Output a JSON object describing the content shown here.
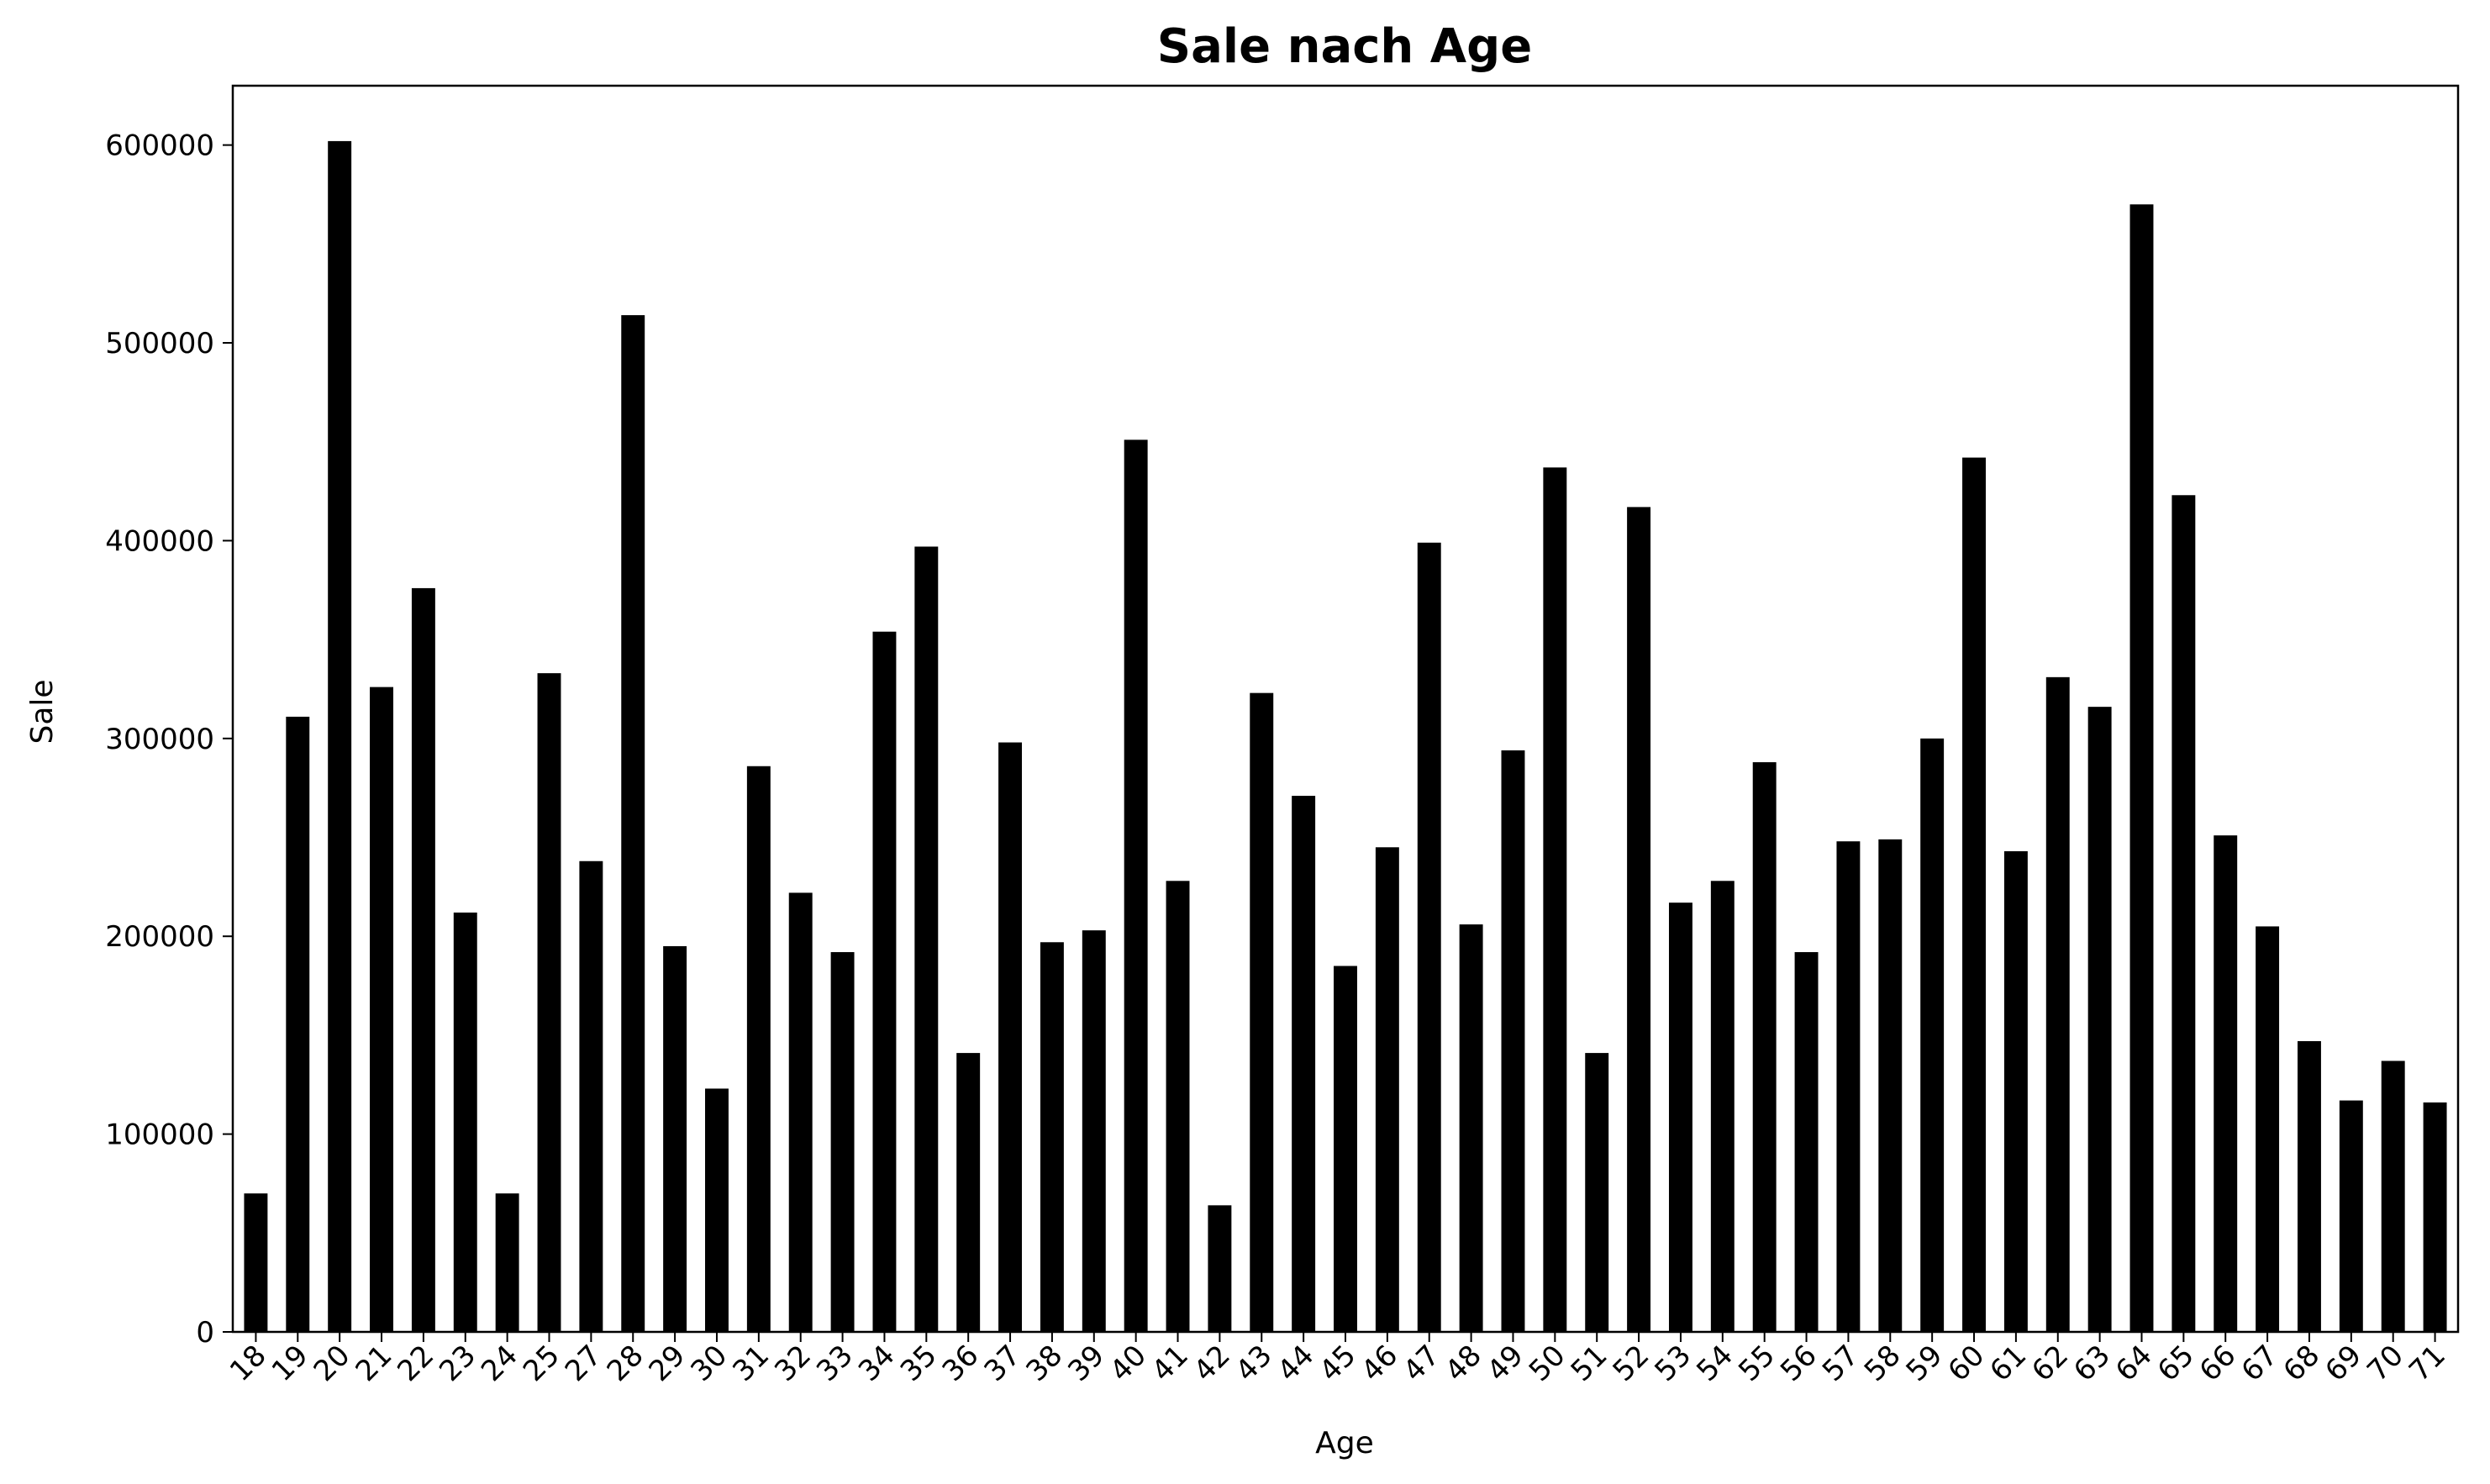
{
  "chart_data": {
    "type": "bar",
    "title": "Sale nach Age",
    "xlabel": "Age",
    "ylabel": "Sale",
    "ylim": [
      0,
      630000
    ],
    "yticks": [
      0,
      100000,
      200000,
      300000,
      400000,
      500000,
      600000
    ],
    "ytick_labels": [
      "0",
      "100000",
      "200000",
      "300000",
      "400000",
      "500000",
      "600000"
    ],
    "grid": false,
    "bar_color": "#000000",
    "categories": [
      "18",
      "19",
      "20",
      "21",
      "22",
      "23",
      "24",
      "25",
      "27",
      "28",
      "29",
      "30",
      "31",
      "32",
      "33",
      "34",
      "35",
      "36",
      "37",
      "38",
      "39",
      "40",
      "41",
      "42",
      "43",
      "44",
      "45",
      "46",
      "47",
      "48",
      "49",
      "50",
      "51",
      "52",
      "53",
      "54",
      "55",
      "56",
      "57",
      "58",
      "59",
      "60",
      "61",
      "62",
      "63",
      "64",
      "65",
      "66",
      "67",
      "68",
      "69",
      "70",
      "71"
    ],
    "values": [
      70000,
      311000,
      602000,
      326000,
      376000,
      212000,
      70000,
      333000,
      238000,
      514000,
      195000,
      123000,
      286000,
      222000,
      192000,
      354000,
      397000,
      141000,
      298000,
      197000,
      203000,
      451000,
      228000,
      64000,
      323000,
      271000,
      185000,
      245000,
      399000,
      206000,
      294000,
      437000,
      141000,
      417000,
      217000,
      228000,
      288000,
      192000,
      248000,
      249000,
      300000,
      442000,
      243000,
      331000,
      316000,
      570000,
      423000,
      251000,
      205000,
      147000,
      117000,
      137000,
      116000
    ]
  }
}
